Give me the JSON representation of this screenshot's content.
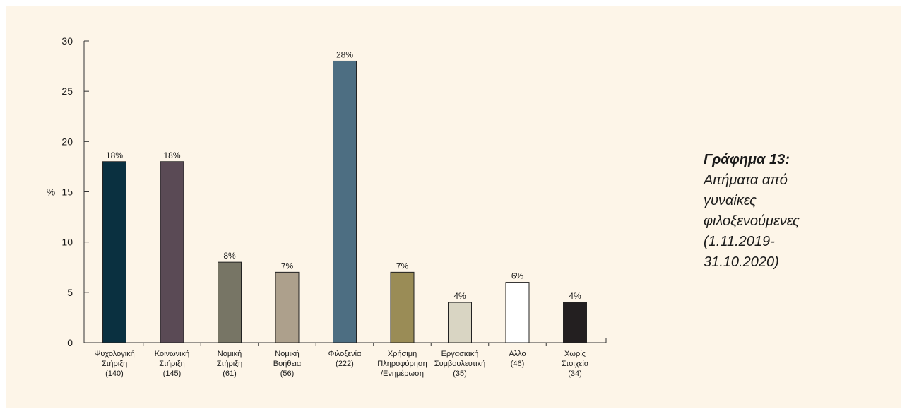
{
  "caption": {
    "title": "Γράφημα 13:",
    "subtitle": "Αιτήματα από\nγυναίκες\nφιλοξενούμενες\n(1.11.2019-\n31.10.2020)"
  },
  "chart_data": {
    "type": "bar",
    "ylabel": "%",
    "ylim": [
      0,
      30
    ],
    "yticks": [
      0,
      5,
      10,
      15,
      20,
      25,
      30
    ],
    "grid": false,
    "legend": "none",
    "categories": [
      [
        "Ψυχολογική",
        "Στήριξη",
        "(140)"
      ],
      [
        "Κοινωνική",
        "Στήριξη",
        "(145)"
      ],
      [
        "Νομική",
        "Στήριξη",
        "(61)"
      ],
      [
        "Νομική",
        "Βοήθεια",
        "(56)"
      ],
      [
        "Φιλοξενία",
        "(222)"
      ],
      [
        "Χρήσιμη",
        "Πληροφόρηση",
        "/Ενημέρωση"
      ],
      [
        "Εργασιακή",
        "Συμβουλευτική",
        "(35)"
      ],
      [
        "Αλλο",
        "(46)"
      ],
      [
        "Χωρίς",
        "Στοιχεία",
        "(34)"
      ]
    ],
    "values": [
      18,
      18,
      8,
      7,
      28,
      7,
      4,
      6,
      4
    ],
    "data_labels": [
      "18%",
      "18%",
      "8%",
      "7%",
      "28%",
      "7%",
      "4%",
      "6%",
      "4%"
    ],
    "colors": [
      "#0a3040",
      "#5a4a55",
      "#777565",
      "#ada08c",
      "#4d6e82",
      "#9a8c56",
      "#d9d5c3",
      "#ffffff",
      "#231f20"
    ]
  }
}
